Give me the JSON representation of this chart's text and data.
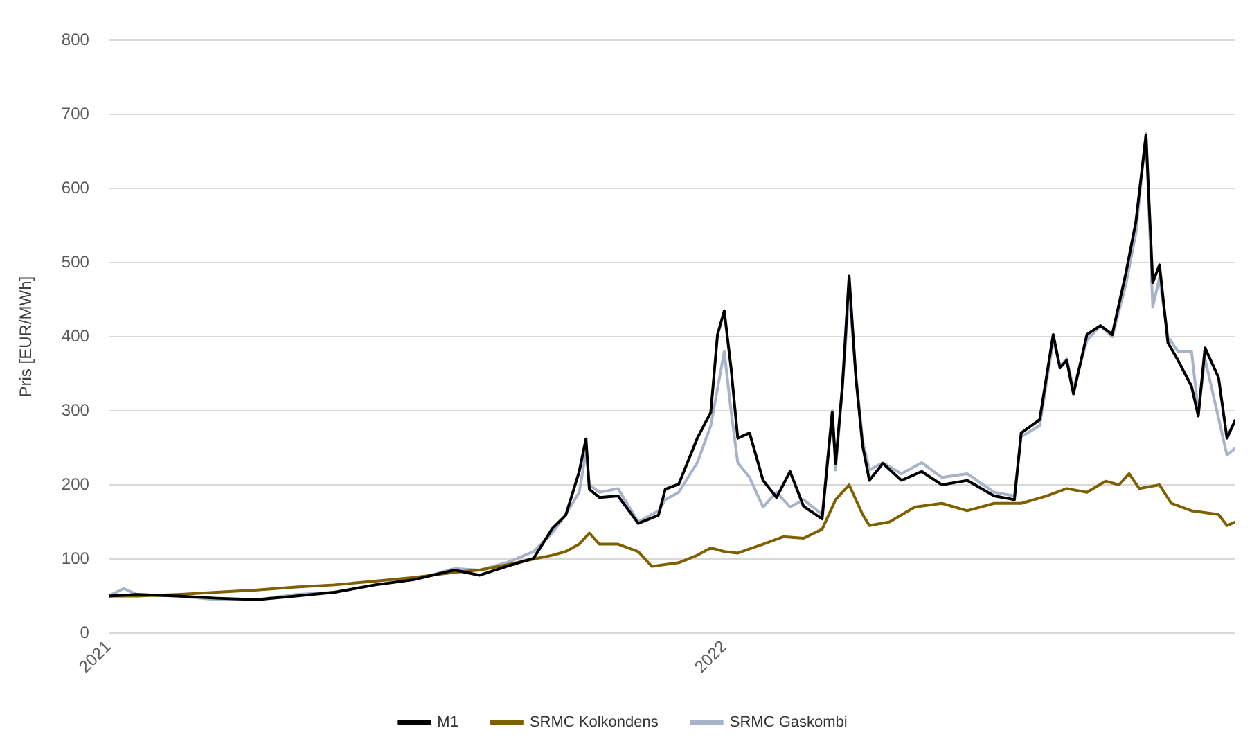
{
  "chart_data": {
    "type": "line",
    "ylabel": "Pris [EUR/MWh]",
    "xlim": [
      "2021-01-01",
      "2022-10-31"
    ],
    "xticks": [
      "2021",
      "2022"
    ],
    "ylim": [
      0,
      800
    ],
    "yticks": [
      0,
      100,
      200,
      300,
      400,
      500,
      600,
      700,
      800
    ],
    "grid": "y",
    "legend": "bottom",
    "series": [
      {
        "name": "M1",
        "color": "#000000",
        "x": [
          "2021-01-01",
          "2021-01-18",
          "2021-02-11",
          "2021-03-06",
          "2021-03-30",
          "2021-04-22",
          "2021-05-15",
          "2021-06-08",
          "2021-07-01",
          "2021-07-25",
          "2021-08-09",
          "2021-08-25",
          "2021-09-10",
          "2021-09-21",
          "2021-09-29",
          "2021-10-07",
          "2021-10-11",
          "2021-10-13",
          "2021-10-19",
          "2021-10-30",
          "2021-11-11",
          "2021-11-23",
          "2021-11-27",
          "2021-12-05",
          "2021-12-16",
          "2021-12-24",
          "2021-12-28",
          "2022-01-01",
          "2022-01-05",
          "2022-01-09",
          "2022-01-16",
          "2022-01-24",
          "2022-02-01",
          "2022-02-09",
          "2022-02-17",
          "2022-02-28",
          "2022-03-06",
          "2022-03-08",
          "2022-03-12",
          "2022-03-16",
          "2022-03-20",
          "2022-03-24",
          "2022-03-28",
          "2022-04-05",
          "2022-04-16",
          "2022-04-28",
          "2022-05-10",
          "2022-05-25",
          "2022-06-10",
          "2022-06-22",
          "2022-06-26",
          "2022-07-07",
          "2022-07-15",
          "2022-07-19",
          "2022-07-23",
          "2022-07-27",
          "2022-08-04",
          "2022-08-12",
          "2022-08-19",
          "2022-08-27",
          "2022-09-02",
          "2022-09-08",
          "2022-09-12",
          "2022-09-16",
          "2022-09-21",
          "2022-09-27",
          "2022-10-05",
          "2022-10-09",
          "2022-10-13",
          "2022-10-21",
          "2022-10-26",
          "2022-10-31"
        ],
        "values": [
          50,
          52,
          50,
          47,
          45,
          50,
          55,
          65,
          72,
          85,
          78,
          90,
          101,
          141,
          159,
          218,
          262,
          194,
          183,
          185,
          148,
          159,
          194,
          201,
          263,
          298,
          403,
          435,
          358,
          263,
          270,
          206,
          183,
          218,
          171,
          154,
          298,
          229,
          333,
          482,
          345,
          253,
          206,
          229,
          206,
          218,
          200,
          206,
          185,
          180,
          270,
          288,
          403,
          358,
          368,
          323,
          403,
          415,
          403,
          485,
          555,
          672,
          473,
          497,
          392,
          368,
          333,
          293,
          385,
          345,
          263,
          288
        ]
      },
      {
        "name": "SRMC Kolkondens",
        "color": "#7f6000",
        "x": [
          "2021-01-01",
          "2021-01-18",
          "2021-02-11",
          "2021-03-06",
          "2021-03-30",
          "2021-04-22",
          "2021-05-15",
          "2021-06-08",
          "2021-07-01",
          "2021-07-25",
          "2021-08-09",
          "2021-08-25",
          "2021-09-10",
          "2021-09-21",
          "2021-09-29",
          "2021-10-07",
          "2021-10-13",
          "2021-10-19",
          "2021-10-30",
          "2021-11-11",
          "2021-11-19",
          "2021-12-05",
          "2021-12-16",
          "2021-12-24",
          "2022-01-01",
          "2022-01-09",
          "2022-01-24",
          "2022-02-05",
          "2022-02-17",
          "2022-02-28",
          "2022-03-08",
          "2022-03-16",
          "2022-03-24",
          "2022-03-28",
          "2022-04-09",
          "2022-04-24",
          "2022-05-10",
          "2022-05-25",
          "2022-06-10",
          "2022-06-26",
          "2022-07-11",
          "2022-07-23",
          "2022-08-04",
          "2022-08-15",
          "2022-08-23",
          "2022-08-29",
          "2022-09-04",
          "2022-09-16",
          "2022-09-23",
          "2022-10-05",
          "2022-10-21",
          "2022-10-26",
          "2022-10-31"
        ],
        "values": [
          50,
          50,
          52,
          55,
          58,
          62,
          65,
          70,
          75,
          82,
          85,
          92,
          100,
          105,
          110,
          120,
          135,
          120,
          120,
          110,
          90,
          95,
          105,
          115,
          110,
          108,
          120,
          130,
          128,
          140,
          180,
          200,
          160,
          145,
          150,
          170,
          175,
          165,
          175,
          175,
          185,
          195,
          190,
          205,
          200,
          215,
          195,
          200,
          175,
          165,
          160,
          145,
          150
        ]
      },
      {
        "name": "SRMC Gaskombi",
        "color": "#a6b3c9",
        "x": [
          "2021-01-01",
          "2021-01-10",
          "2021-01-18",
          "2021-02-11",
          "2021-03-06",
          "2021-03-30",
          "2021-04-22",
          "2021-05-15",
          "2021-06-08",
          "2021-07-01",
          "2021-07-25",
          "2021-08-09",
          "2021-08-25",
          "2021-09-10",
          "2021-09-21",
          "2021-09-29",
          "2021-10-07",
          "2021-10-11",
          "2021-10-13",
          "2021-10-19",
          "2021-10-30",
          "2021-11-11",
          "2021-11-23",
          "2021-11-27",
          "2021-12-05",
          "2021-12-16",
          "2021-12-24",
          "2021-12-28",
          "2022-01-01",
          "2022-01-05",
          "2022-01-09",
          "2022-01-16",
          "2022-01-24",
          "2022-02-01",
          "2022-02-09",
          "2022-02-17",
          "2022-02-28",
          "2022-03-06",
          "2022-03-08",
          "2022-03-12",
          "2022-03-16",
          "2022-03-20",
          "2022-03-24",
          "2022-03-28",
          "2022-04-05",
          "2022-04-16",
          "2022-04-28",
          "2022-05-10",
          "2022-05-25",
          "2022-06-10",
          "2022-06-22",
          "2022-06-26",
          "2022-07-07",
          "2022-07-15",
          "2022-07-19",
          "2022-07-23",
          "2022-07-27",
          "2022-08-04",
          "2022-08-12",
          "2022-08-19",
          "2022-08-27",
          "2022-09-02",
          "2022-09-08",
          "2022-09-12",
          "2022-09-16",
          "2022-09-21",
          "2022-09-27",
          "2022-10-05",
          "2022-10-09",
          "2022-10-13",
          "2022-10-21",
          "2022-10-26",
          "2022-10-31"
        ],
        "values": [
          50,
          60,
          52,
          50,
          45,
          45,
          52,
          55,
          65,
          72,
          87,
          85,
          95,
          110,
          135,
          160,
          190,
          245,
          200,
          190,
          195,
          150,
          165,
          180,
          190,
          230,
          280,
          330,
          380,
          300,
          230,
          210,
          170,
          190,
          170,
          180,
          160,
          300,
          220,
          330,
          460,
          350,
          260,
          220,
          230,
          215,
          230,
          210,
          215,
          190,
          185,
          265,
          280,
          395,
          360,
          370,
          330,
          395,
          415,
          400,
          470,
          540,
          675,
          440,
          480,
          400,
          380,
          380,
          300,
          370,
          290,
          240,
          250
        ]
      }
    ]
  }
}
